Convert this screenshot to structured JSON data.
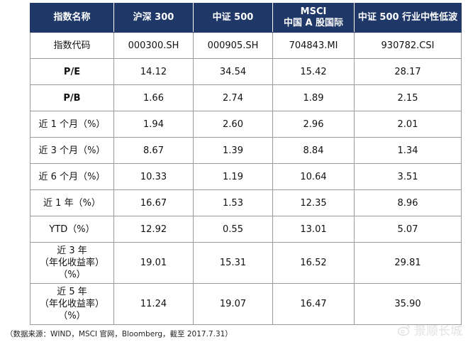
{
  "table": {
    "headers": [
      [
        "指数名称"
      ],
      [
        "沪深 300"
      ],
      [
        "中证 500"
      ],
      [
        "MSCI",
        "中国 A 股国际"
      ],
      [
        "中证 500 行业中性低波"
      ]
    ],
    "rows": [
      {
        "label": [
          "指数代码"
        ],
        "values": [
          "000300.SH",
          "000905.SH",
          "704843.MI",
          "930782.CSI"
        ],
        "bold": false,
        "tall": false
      },
      {
        "label": [
          "P/E"
        ],
        "values": [
          "14.12",
          "34.54",
          "15.42",
          "28.17"
        ],
        "bold": true,
        "tall": false
      },
      {
        "label": [
          "P/B"
        ],
        "values": [
          "1.66",
          "2.74",
          "1.89",
          "2.15"
        ],
        "bold": true,
        "tall": false
      },
      {
        "label": [
          "近 1 个月（%）"
        ],
        "values": [
          "1.94",
          "2.60",
          "2.96",
          "2.01"
        ],
        "bold": false,
        "tall": false
      },
      {
        "label": [
          "近 3 个月（%）"
        ],
        "values": [
          "8.67",
          "1.39",
          "8.84",
          "1.34"
        ],
        "bold": false,
        "tall": false
      },
      {
        "label": [
          "近 6 个月（%）"
        ],
        "values": [
          "10.33",
          "1.19",
          "10.64",
          "3.51"
        ],
        "bold": false,
        "tall": false
      },
      {
        "label": [
          "近 1 年（%）"
        ],
        "values": [
          "16.67",
          "1.53",
          "12.35",
          "8.96"
        ],
        "bold": false,
        "tall": false
      },
      {
        "label": [
          "YTD（%）"
        ],
        "values": [
          "12.92",
          "0.55",
          "13.01",
          "5.07"
        ],
        "bold": false,
        "tall": false
      },
      {
        "label": [
          "近 3 年",
          "（年化收益率）",
          "（%）"
        ],
        "values": [
          "19.01",
          "15.31",
          "16.52",
          "29.81"
        ],
        "bold": false,
        "tall": true
      },
      {
        "label": [
          "近 5 年",
          "（年化收益率）",
          "（%）"
        ],
        "values": [
          "11.24",
          "19.07",
          "16.47",
          "35.90"
        ],
        "bold": false,
        "tall": true
      }
    ]
  },
  "source_note": "（数据来源：WIND，MSCI 官网，Bloomberg，截至 2017.7.31）",
  "watermark": {
    "text": "景顺长城",
    "icon": "weibo-icon"
  },
  "colors": {
    "header_bg": "#1f3868",
    "header_text": "#ffffff",
    "border": "#9a9a9a",
    "watermark": "#e2e2e2"
  }
}
